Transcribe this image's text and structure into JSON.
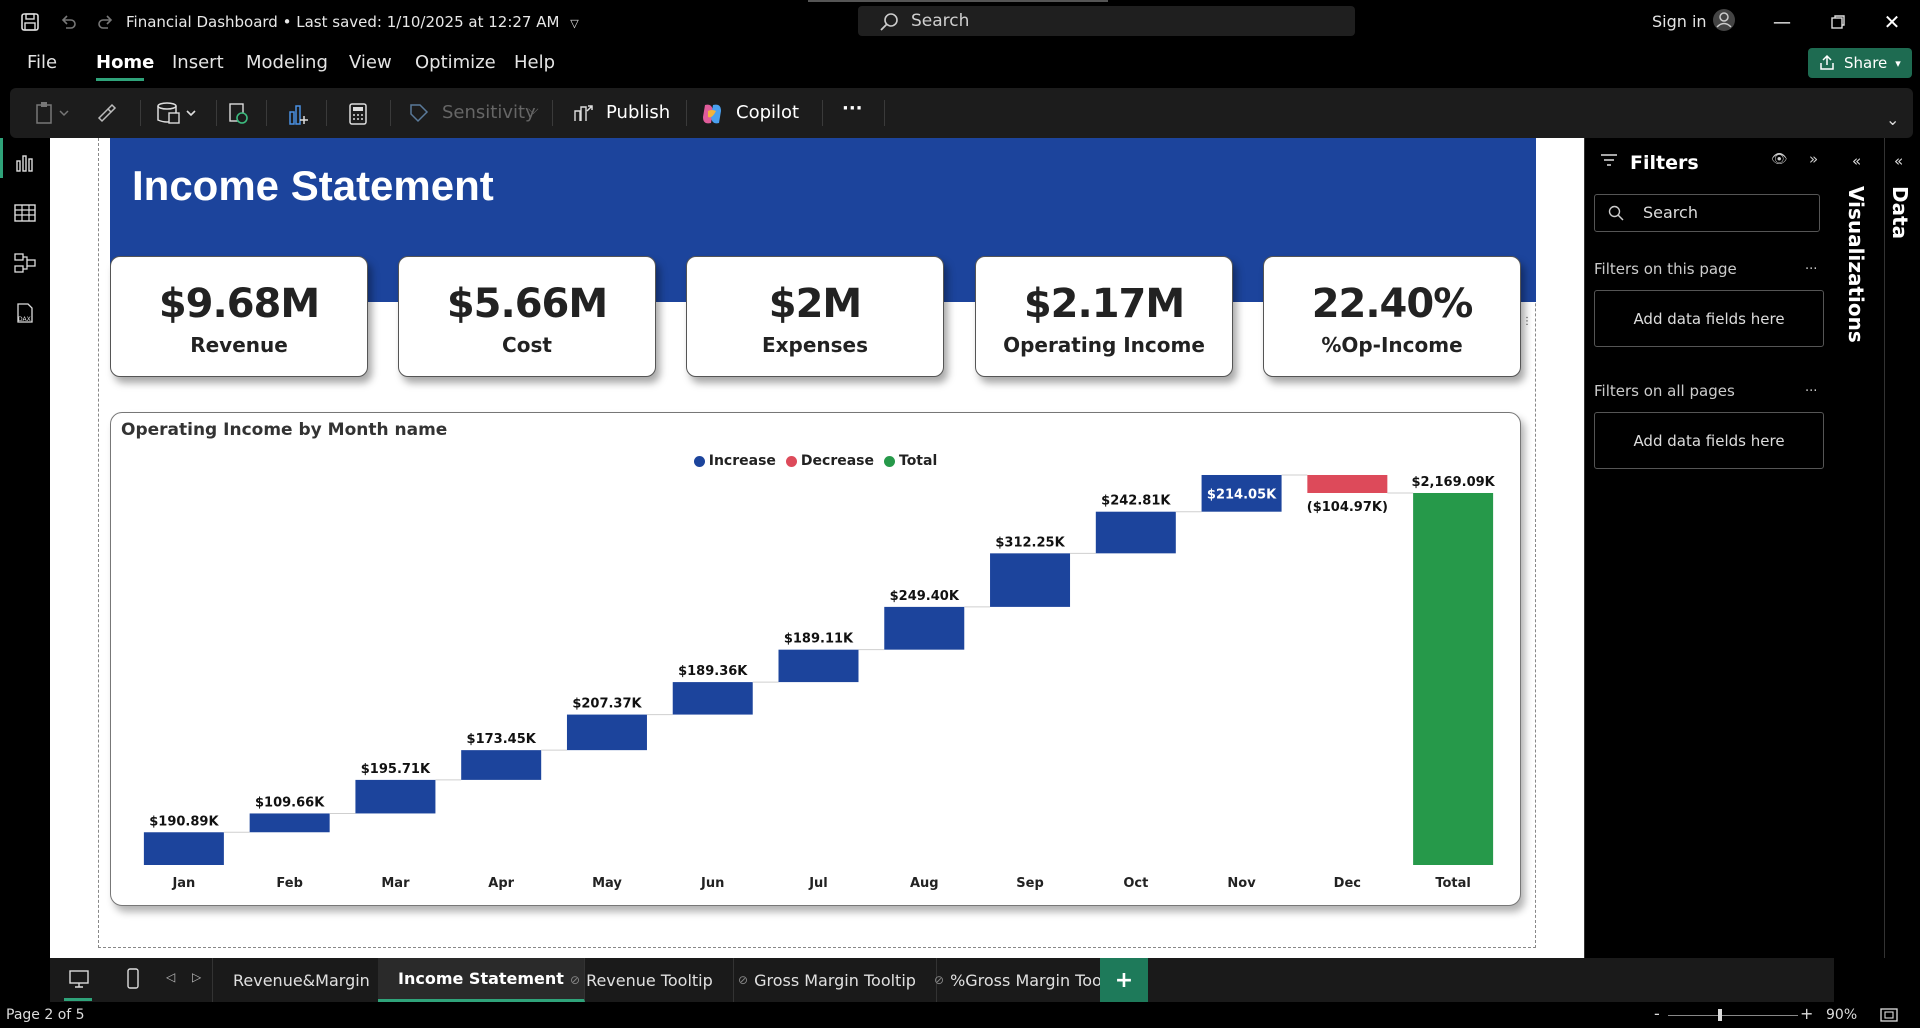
{
  "titlebar": {
    "doc_title": "Financial Dashboard",
    "saved": "Last saved: 1/10/2025 at 12:27 AM",
    "search_placeholder": "Search",
    "sign_in": "Sign in"
  },
  "menu": [
    "File",
    "Home",
    "Insert",
    "Modeling",
    "View",
    "Optimize",
    "Help"
  ],
  "menu_active": "Home",
  "share_label": "Share",
  "ribbon": {
    "sensitivity": "Sensitivity",
    "publish": "Publish",
    "copilot": "Copilot",
    "more": "···"
  },
  "report": {
    "title": "Income Statement",
    "kpis": [
      {
        "value": "$9.68M",
        "label": "Revenue"
      },
      {
        "value": "$5.66M",
        "label": "Cost"
      },
      {
        "value": "$2M",
        "label": "Expenses"
      },
      {
        "value": "$2.17M",
        "label": "Operating Income"
      },
      {
        "value": "22.40%",
        "label": "%Op-Income"
      }
    ]
  },
  "chart_data": {
    "type": "waterfall",
    "title": "Operating Income by Month name",
    "legend": [
      {
        "name": "Increase",
        "color": "#1c449c"
      },
      {
        "name": "Decrease",
        "color": "#dd4a5a"
      },
      {
        "name": "Total",
        "color": "#26994a"
      }
    ],
    "categories": [
      "Jan",
      "Feb",
      "Mar",
      "Apr",
      "May",
      "Jun",
      "Jul",
      "Aug",
      "Sep",
      "Oct",
      "Nov",
      "Dec",
      "Total"
    ],
    "values": [
      190.89,
      109.66,
      195.71,
      173.45,
      207.37,
      189.36,
      189.11,
      249.4,
      312.25,
      242.81,
      214.05,
      -104.97,
      2169.09
    ],
    "data_labels": [
      "$190.89K",
      "$109.66K",
      "$195.71K",
      "$173.45K",
      "$207.37K",
      "$189.36K",
      "$189.11K",
      "$249.40K",
      "$312.25K",
      "$242.81K",
      "$214.05K",
      "($104.97K)",
      "$2,169.09K"
    ],
    "unit": "K",
    "ylim": [
      0,
      2274
    ]
  },
  "filters": {
    "title": "Filters",
    "search_placeholder": "Search",
    "section_page": "Filters on this page",
    "section_all": "Filters on all pages",
    "add_fields": "Add data fields here",
    "more": "..."
  },
  "panes": {
    "visualizations": "Visualizations",
    "data": "Data"
  },
  "tabs": [
    "Revenue&Margin",
    "Income Statement",
    "Revenue Tooltip",
    "Gross Margin Tooltip",
    "%Gross Margin Tooltip"
  ],
  "tab_active": "Income Statement",
  "status": {
    "page": "Page 2 of 5",
    "zoom": "90%"
  }
}
